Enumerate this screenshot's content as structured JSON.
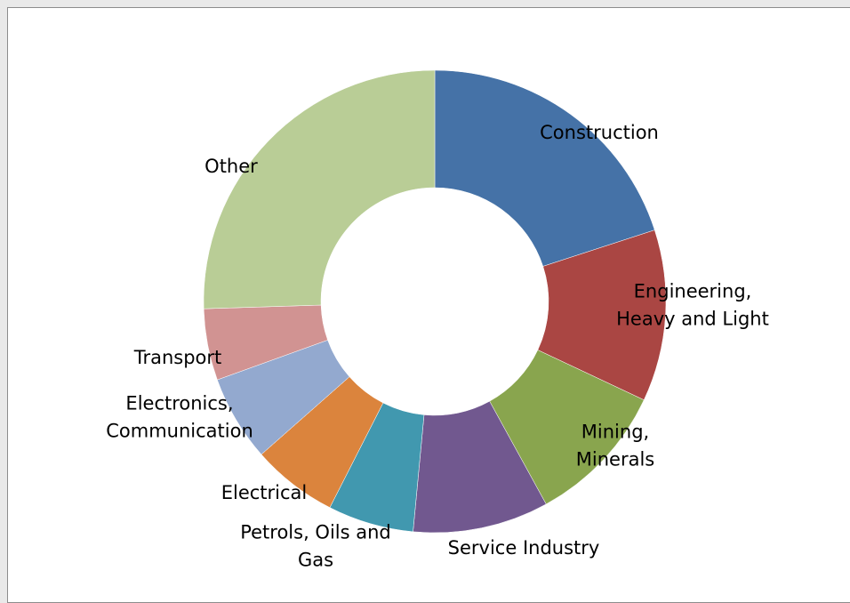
{
  "chart_data": {
    "type": "pie",
    "variant": "doughnut",
    "title": "",
    "legend": "none",
    "slices": [
      {
        "label": "Construction",
        "value": 20.0,
        "color": "#4572A7"
      },
      {
        "label": "Engineering, Heavy and Light",
        "value": 12.0,
        "color": "#AA4643"
      },
      {
        "label": "Mining, Minerals",
        "value": 10.0,
        "color": "#89A54E"
      },
      {
        "label": "Service Industry",
        "value": 9.5,
        "color": "#71588F"
      },
      {
        "label": "Petrols, Oils and Gas",
        "value": 6.0,
        "color": "#4198AF"
      },
      {
        "label": "Electrical",
        "value": 6.0,
        "color": "#DB843D"
      },
      {
        "label": "Electronics, Communication",
        "value": 6.0,
        "color": "#93A9CF"
      },
      {
        "label": "Transport",
        "value": 5.0,
        "color": "#D19392"
      },
      {
        "label": "Other",
        "value": 25.5,
        "color": "#B9CD96"
      }
    ]
  }
}
